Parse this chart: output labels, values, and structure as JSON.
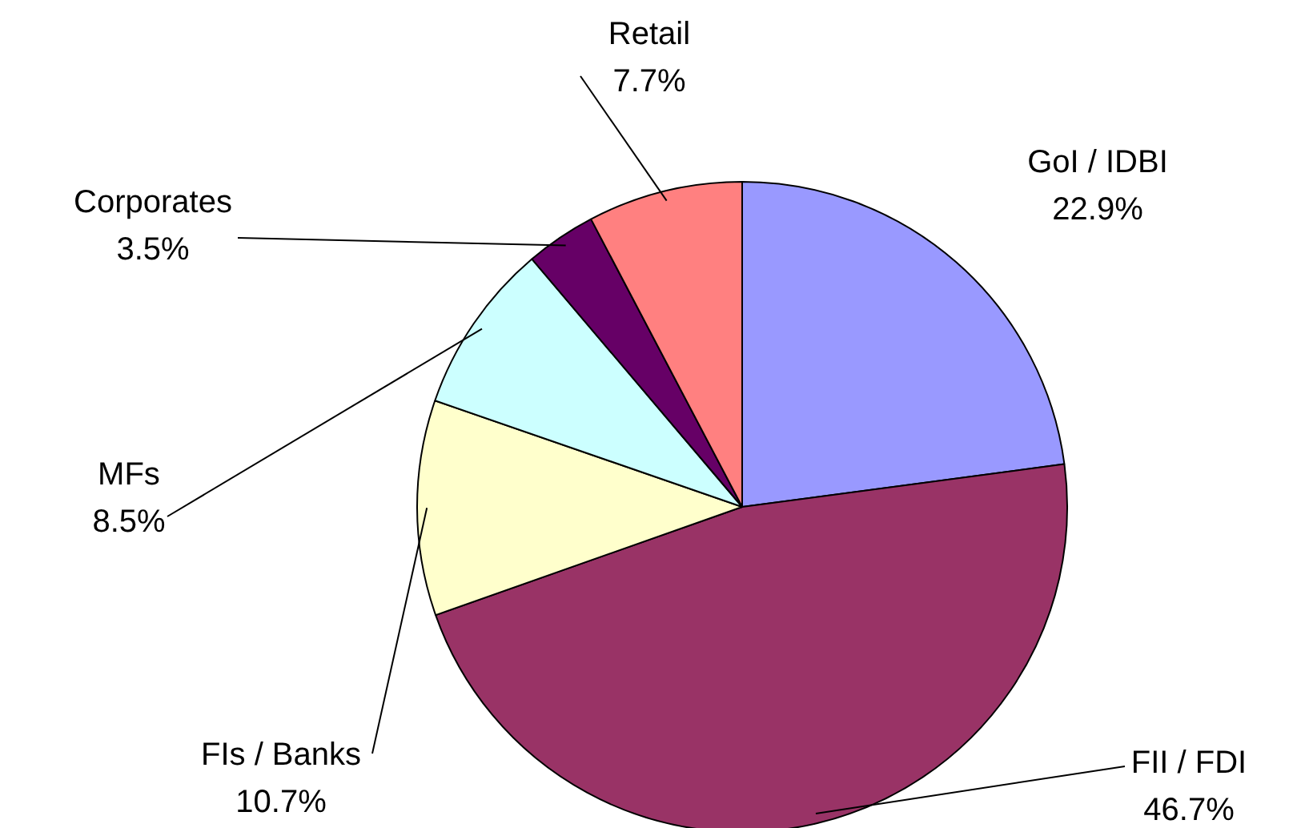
{
  "chart_data": {
    "type": "pie",
    "categories": [
      "GoI / IDBI",
      "FII / FDI",
      "FIs / Banks",
      "MFs",
      "Corporates",
      "Retail"
    ],
    "values": [
      22.9,
      46.7,
      10.7,
      8.5,
      3.5,
      7.7
    ],
    "colors": [
      "#9999ff",
      "#993366",
      "#ffffcc",
      "#ccffff",
      "#660066",
      "#ff8080"
    ],
    "value_labels": [
      "22.9%",
      "46.7%",
      "10.7%",
      "8.5%",
      "3.5%",
      "7.7%"
    ]
  }
}
